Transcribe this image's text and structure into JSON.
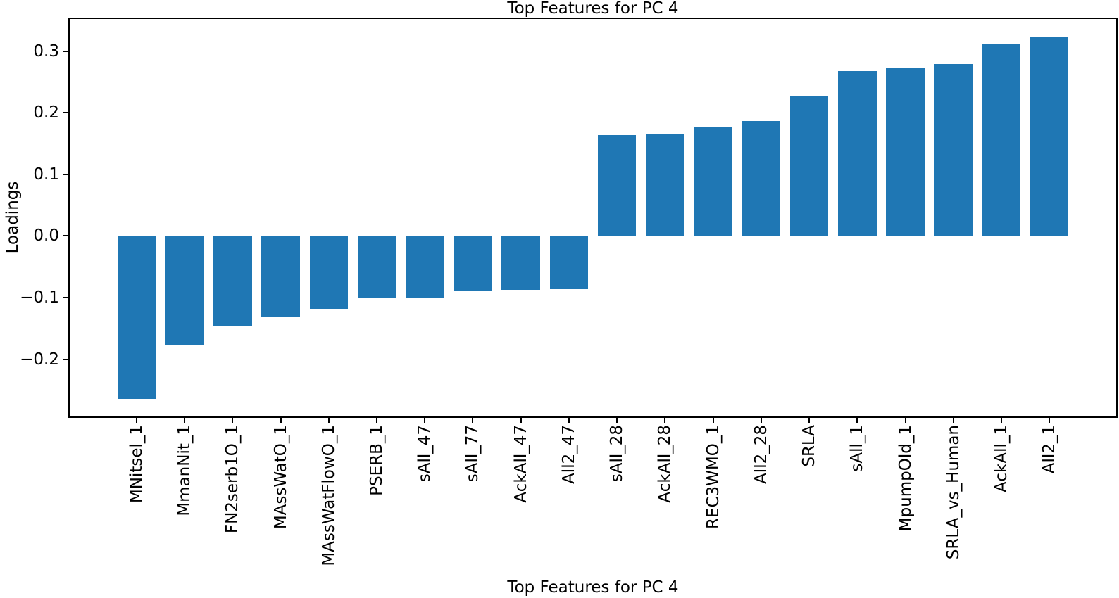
{
  "figure": {
    "background": "#ffffff",
    "text_color": "#000000",
    "spine_color": "#000000"
  },
  "chart_data": {
    "type": "bar",
    "title": "Top Features for PC 4",
    "xlabel": "Top Features for PC 4",
    "ylabel": "Loadings",
    "categories": [
      "MNitsel_1",
      "MmanNit_1",
      "FN2serb1O_1",
      "MAssWatO_1",
      "MAssWatFlowO_1",
      "PSERB_1",
      "sAll_47",
      "sAll_77",
      "AckAll_47",
      "All2_47",
      "sAll_28",
      "AckAll_28",
      "REC3WMO_1",
      "All2_28",
      "SRLA",
      "sAll_1",
      "MpumpOld_1",
      "SRLA_vs_Human",
      "AckAll_1",
      "All2_1"
    ],
    "values": [
      -0.264,
      -0.177,
      -0.147,
      -0.132,
      -0.118,
      -0.101,
      -0.1,
      -0.089,
      -0.088,
      -0.087,
      0.164,
      0.166,
      0.177,
      0.186,
      0.228,
      0.268,
      0.273,
      0.279,
      0.312,
      0.322
    ],
    "bar_color": "#1f77b4",
    "bar_width_frac": 0.8,
    "ylim": [
      -0.293,
      0.352
    ],
    "yticks": [
      -0.2,
      -0.1,
      0.0,
      0.1,
      0.2,
      0.3
    ],
    "grid": false,
    "legend": null
  }
}
